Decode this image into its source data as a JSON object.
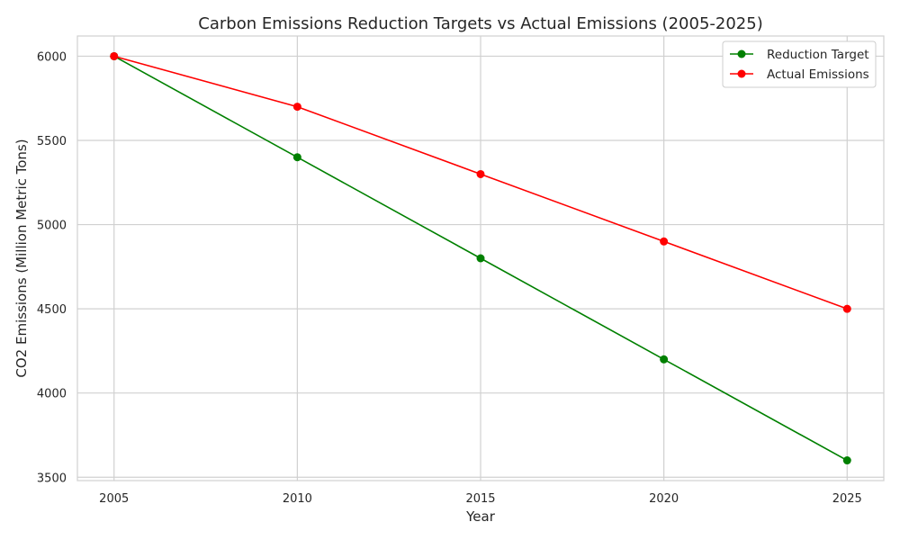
{
  "chart_data": {
    "type": "line",
    "title": "Carbon Emissions Reduction Targets vs Actual Emissions (2005-2025)",
    "xlabel": "Year",
    "ylabel": "CO2 Emissions (Million Metric Tons)",
    "x": [
      2005,
      2010,
      2015,
      2020,
      2025
    ],
    "xlim": [
      2004,
      2026
    ],
    "ylim": [
      3480,
      6120
    ],
    "xticks": [
      2005,
      2010,
      2015,
      2020,
      2025
    ],
    "yticks": [
      3500,
      4000,
      4500,
      5000,
      5500,
      6000
    ],
    "grid": true,
    "legend_position": "top-right",
    "series": [
      {
        "name": "Reduction Target",
        "color": "#008000",
        "marker": "circle",
        "values": [
          6000,
          5400,
          4800,
          4200,
          3600
        ]
      },
      {
        "name": "Actual Emissions",
        "color": "#ff0000",
        "marker": "circle",
        "values": [
          6000,
          5700,
          5300,
          4900,
          4500
        ]
      }
    ]
  }
}
